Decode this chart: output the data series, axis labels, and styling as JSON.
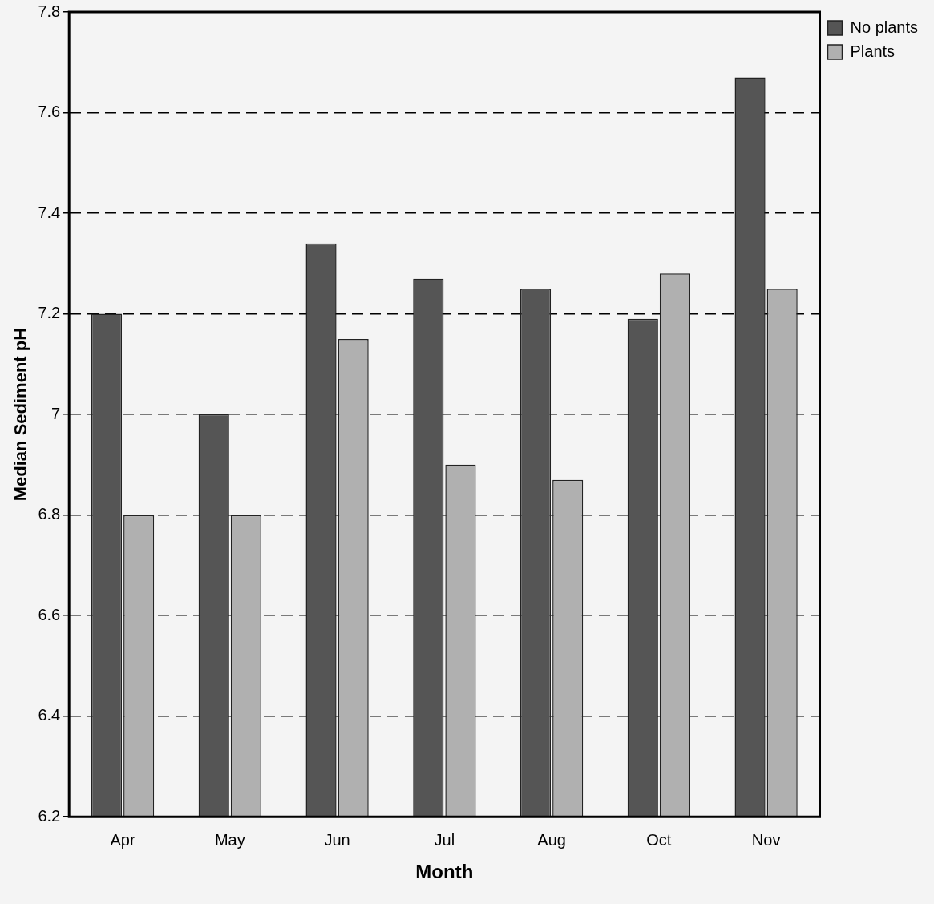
{
  "chart_data": {
    "type": "bar",
    "xlabel": "Month",
    "ylabel": "Median Sediment pH",
    "categories": [
      "Apr",
      "May",
      "Jun",
      "Jul",
      "Aug",
      "Oct",
      "Nov"
    ],
    "series": [
      {
        "name": "No plants",
        "color": "#555555",
        "values": [
          7.2,
          7.0,
          7.34,
          7.27,
          7.25,
          7.19,
          7.67
        ]
      },
      {
        "name": "Plants",
        "color": "#b0b0b0",
        "values": [
          6.8,
          6.8,
          7.15,
          6.9,
          6.87,
          7.28,
          7.25
        ]
      }
    ],
    "ylim": [
      6.2,
      7.8
    ],
    "yticks": [
      6.2,
      6.4,
      6.6,
      6.8,
      7,
      7.2,
      7.4,
      7.6,
      7.8
    ],
    "grid": "y",
    "legend": "top right"
  }
}
